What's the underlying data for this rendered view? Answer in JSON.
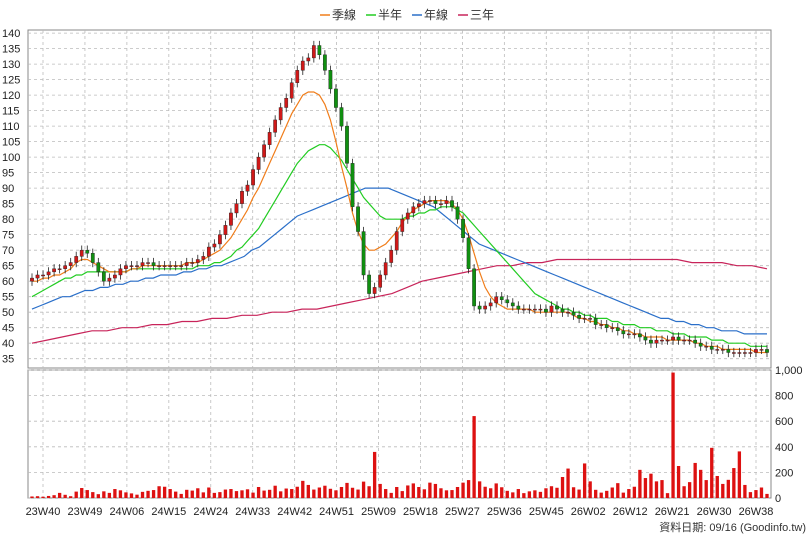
{
  "chart_data": {
    "type": "candlestick",
    "legend": [
      {
        "name": "季線",
        "color": "#f07d1a"
      },
      {
        "name": "半年",
        "color": "#22cc22"
      },
      {
        "name": "年線",
        "color": "#2a6fc9"
      },
      {
        "name": "三年",
        "color": "#c8245a"
      }
    ],
    "footer": "資料日期: 09/16 (Goodinfo.tw)",
    "price_axis": {
      "min": 32,
      "max": 141,
      "ticks": [
        35,
        40,
        45,
        50,
        55,
        60,
        65,
        70,
        75,
        80,
        85,
        90,
        95,
        100,
        105,
        110,
        115,
        120,
        125,
        130,
        135,
        140
      ]
    },
    "volume_axis": {
      "min": 0,
      "max": 1000,
      "ticks": [
        0,
        200,
        400,
        600,
        800,
        1000
      ],
      "tick_labels": [
        "0",
        "200",
        "400",
        "600",
        "800",
        "1,000"
      ]
    },
    "x_tick_labels": [
      "23W40",
      "23W49",
      "24W06",
      "24W15",
      "24W24",
      "24W33",
      "24W42",
      "24W51",
      "25W09",
      "25W18",
      "25W27",
      "25W36",
      "25W45",
      "26W02",
      "26W12",
      "26W21",
      "26W30",
      "26W38"
    ],
    "grid": true,
    "close": [
      61,
      62,
      62,
      63,
      64,
      64,
      65,
      66,
      68,
      70,
      69,
      66,
      63,
      60,
      61,
      62,
      64,
      65,
      65,
      65,
      66,
      66,
      65,
      65,
      65,
      65,
      65,
      65,
      66,
      66,
      67,
      68,
      71,
      72,
      75,
      78,
      82,
      85,
      89,
      91,
      96,
      100,
      104,
      108,
      112,
      116,
      119,
      124,
      128,
      131,
      132,
      136,
      133,
      128,
      122,
      116,
      110,
      98,
      84,
      76,
      62,
      56,
      58,
      62,
      66,
      70,
      76,
      80,
      82,
      84,
      85,
      86,
      86,
      85,
      85,
      86,
      84,
      80,
      74,
      64,
      52,
      51,
      52,
      53,
      55,
      54,
      53,
      52,
      51,
      51,
      51,
      51,
      51,
      50,
      52,
      51,
      50,
      50,
      49,
      48,
      48,
      48,
      46,
      46,
      45,
      45,
      44,
      43,
      43,
      43,
      42,
      41,
      40,
      41,
      41,
      41,
      42,
      41,
      41,
      41,
      40,
      39,
      39,
      38,
      38,
      38,
      37,
      37,
      37,
      37,
      37,
      38,
      38,
      37
    ],
    "volume": [
      12,
      14,
      10,
      16,
      22,
      40,
      25,
      14,
      50,
      78,
      62,
      46,
      30,
      52,
      40,
      70,
      60,
      44,
      36,
      26,
      48,
      56,
      62,
      92,
      88,
      70,
      50,
      32,
      64,
      58,
      76,
      44,
      82,
      40,
      46,
      66,
      70,
      54,
      60,
      68,
      42,
      86,
      58,
      64,
      96,
      52,
      74,
      70,
      88,
      134,
      102,
      66,
      82,
      96,
      72,
      60,
      86,
      118,
      80,
      66,
      128,
      92,
      360,
      110,
      70,
      40,
      86,
      54,
      98,
      114,
      86,
      68,
      120,
      110,
      76,
      60,
      62,
      86,
      120,
      140,
      640,
      130,
      88,
      76,
      114,
      84,
      56,
      44,
      70,
      38,
      52,
      60,
      48,
      76,
      92,
      80,
      164,
      230,
      84,
      66,
      270,
      130,
      64,
      42,
      56,
      82,
      116,
      42,
      70,
      88,
      220,
      156,
      190,
      130,
      140,
      38,
      980,
      250,
      92,
      124,
      274,
      220,
      140,
      392,
      172,
      110,
      142,
      234,
      364,
      102,
      46,
      62,
      82,
      32
    ],
    "ma_quarter": [
      60,
      60,
      61,
      61,
      62,
      62,
      63,
      64,
      66,
      67,
      67,
      66,
      65,
      64,
      63,
      63,
      63,
      63,
      64,
      64,
      65,
      65,
      65,
      65,
      65,
      65,
      65,
      65,
      66,
      66,
      66,
      67,
      68,
      69,
      70,
      72,
      74,
      77,
      80,
      83,
      87,
      90,
      94,
      98,
      102,
      106,
      110,
      114,
      117,
      120,
      121,
      121,
      120,
      117,
      112,
      105,
      97,
      90,
      82,
      76,
      72,
      70,
      70,
      71,
      72,
      74,
      76,
      79,
      81,
      83,
      84,
      85,
      86,
      86,
      86,
      86,
      85,
      83,
      80,
      75,
      69,
      63,
      58,
      55,
      53,
      52,
      51,
      51,
      51,
      51,
      51,
      50,
      50,
      50,
      50,
      50,
      50,
      50,
      49,
      48,
      48,
      47,
      47,
      46,
      46,
      45,
      45,
      44,
      44,
      43,
      43,
      42,
      42,
      42,
      42,
      41,
      41,
      41,
      41,
      41,
      40,
      40,
      39,
      39,
      39,
      38,
      38,
      38,
      38,
      38,
      38,
      37,
      37,
      37
    ],
    "ma_half": [
      55,
      56,
      57,
      58,
      59,
      60,
      61,
      61,
      62,
      62,
      63,
      63,
      63,
      63,
      63,
      63,
      63,
      63,
      64,
      64,
      64,
      64,
      64,
      64,
      64,
      64,
      64,
      64,
      64,
      64,
      65,
      65,
      65,
      66,
      66,
      67,
      68,
      70,
      71,
      73,
      75,
      77,
      80,
      83,
      86,
      89,
      92,
      95,
      98,
      100,
      102,
      103,
      104,
      104,
      103,
      101,
      99,
      96,
      93,
      90,
      87,
      85,
      83,
      81,
      80,
      80,
      80,
      80,
      81,
      81,
      82,
      82,
      83,
      83,
      84,
      84,
      84,
      83,
      82,
      80,
      78,
      76,
      74,
      72,
      70,
      68,
      66,
      64,
      62,
      60,
      58,
      56,
      55,
      54,
      53,
      52,
      51,
      51,
      50,
      50,
      49,
      49,
      48,
      48,
      48,
      47,
      47,
      46,
      46,
      46,
      45,
      45,
      45,
      44,
      44,
      44,
      43,
      43,
      43,
      42,
      42,
      42,
      42,
      41,
      41,
      41,
      40,
      40,
      40,
      40,
      39,
      39,
      39,
      39
    ],
    "ma_year": [
      51,
      52,
      53,
      54,
      55,
      55,
      56,
      57,
      57,
      58,
      58,
      59,
      59,
      60,
      60,
      61,
      61,
      62,
      62,
      62,
      63,
      63,
      64,
      64,
      65,
      65,
      66,
      67,
      68,
      70,
      71,
      73,
      75,
      77,
      79,
      81,
      82,
      83,
      84,
      85,
      86,
      87,
      88,
      89,
      90,
      90,
      90,
      90,
      89,
      88,
      87,
      86,
      85,
      84,
      82,
      80,
      78,
      76,
      74,
      72,
      71,
      70,
      69,
      68,
      67,
      66,
      65,
      64,
      63,
      62,
      61,
      60,
      59,
      58,
      57,
      56,
      55,
      54,
      53,
      52,
      51,
      50,
      49,
      48,
      48,
      47,
      47,
      46,
      46,
      45,
      45,
      44,
      44,
      44,
      43,
      43,
      43,
      43
    ],
    "ma_three": [
      40,
      41,
      42,
      43,
      44,
      44,
      45,
      45,
      46,
      46,
      47,
      47,
      48,
      48,
      49,
      49,
      50,
      50,
      51,
      51,
      52,
      53,
      54,
      55,
      56,
      58,
      60,
      61,
      62,
      63,
      64,
      65,
      65,
      66,
      66,
      67,
      67,
      67,
      67,
      67,
      67,
      67,
      67,
      67,
      66,
      66,
      66,
      65,
      65,
      64
    ],
    "ma_year_start_index": 0,
    "ma_three_start_index": 0
  }
}
